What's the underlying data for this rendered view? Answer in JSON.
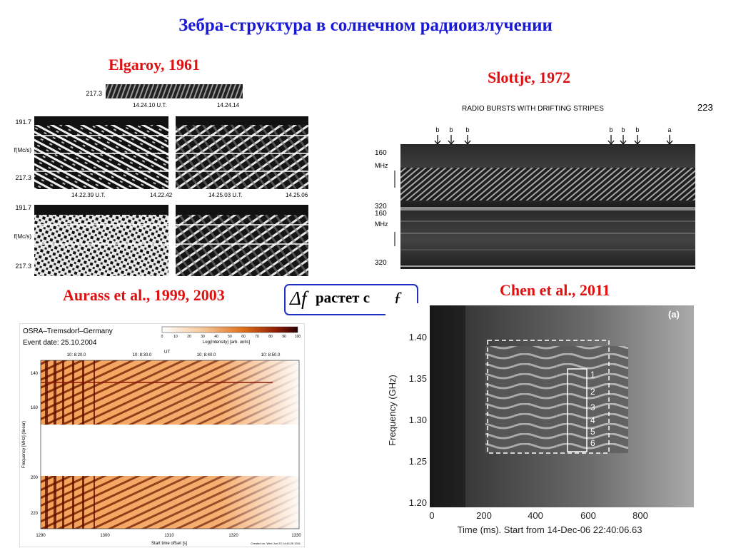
{
  "slide": {
    "title": "Зебра-структура в солнечном радиоизлучении",
    "captions": {
      "elgaroy": "Elgaroy, 1961",
      "slottje": "Slottje, 1972",
      "aurass": "Aurass et al., 1999, 2003",
      "chen": "Chen et al., 2011"
    },
    "formula": {
      "delta": "Δ",
      "f1": "f",
      "text": "растет с",
      "f2": "f"
    }
  },
  "elgaroy": {
    "top_freq": "217.3",
    "top_times": [
      "14.24.10 U.T.",
      "14.24.14"
    ],
    "freq_top": "191.7",
    "freq_unit": "f(Mc/s)",
    "freq_bottom": "217.3",
    "mid_times": [
      "14.22.39 U.T.",
      "14.22.42",
      "14.25.03 U.T.",
      "14.25.06"
    ],
    "freq_top2": "191.7",
    "freq_unit2": "f(Mc/s)",
    "freq_bottom2": "217.3"
  },
  "slottje": {
    "header": "RADIO BURSTS WITH DRIFTING STRIPES",
    "page_num": "223",
    "markers": [
      "b",
      "b",
      "b",
      "b",
      "b",
      "b",
      "a"
    ],
    "ticks": [
      "160",
      "MHz",
      "320",
      "160",
      "MHz",
      "320"
    ]
  },
  "aurass": {
    "site": "OSRA–Tremsdorf–Germany",
    "event": "Event date: 25.10.2004",
    "colorbar_ticks": [
      "0",
      "10",
      "20",
      "30",
      "40",
      "50",
      "60",
      "70",
      "80",
      "90",
      "100"
    ],
    "colorbar_label": "Log(Intensity) [arb. units]",
    "top_times": [
      "10: 8:20.0",
      "10: 8:30.0",
      "10: 8:40.0",
      "10: 8:50.0"
    ],
    "ut": "UT",
    "y_ticks": [
      "140",
      "160",
      "200",
      "220"
    ],
    "ylabel": "Frequency [MHz] (linear)",
    "x_ticks": [
      "1290",
      "1300",
      "1310",
      "1320",
      "1330"
    ],
    "xlabel": "Start time offset [s]",
    "created": "Created on: Wed Jun 23 14:44:25 2011"
  },
  "chen": {
    "panel": "(a)",
    "ylabel": "Frequency (GHz)",
    "y_ticks": [
      "1.40",
      "1.35",
      "1.30",
      "1.25",
      "1.20"
    ],
    "x_ticks": [
      "0",
      "200",
      "400",
      "600",
      "800"
    ],
    "xlabel": "Time (ms). Start from 14-Dec-06 22:40:06.63",
    "stripe_labels": [
      "1",
      "2",
      "3",
      "4",
      "5",
      "6"
    ]
  }
}
